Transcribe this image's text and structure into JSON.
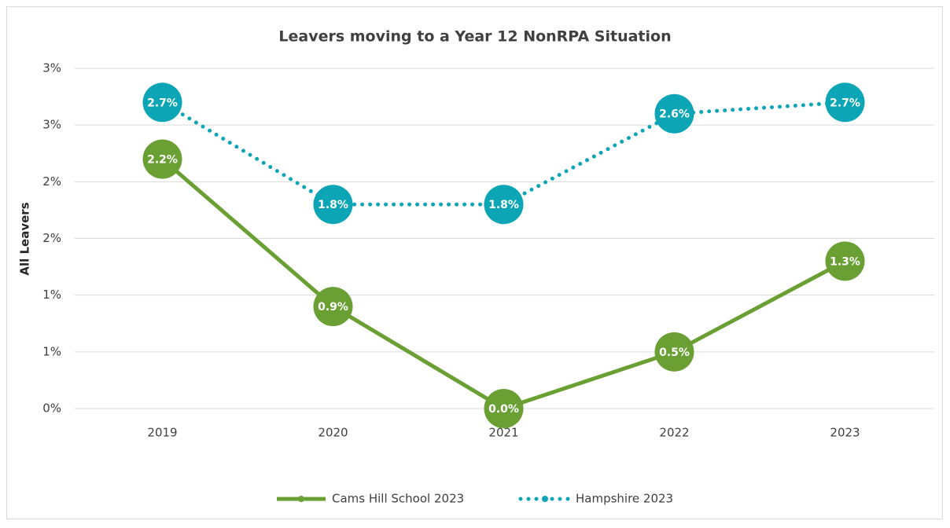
{
  "chart_data": {
    "type": "line",
    "title": "Leavers moving to a Year 12 NonRPA Situation",
    "y_label": "All Leavers",
    "categories": [
      "2019",
      "2020",
      "2021",
      "2022",
      "2023"
    ],
    "series": [
      {
        "name": "Cams Hill School 2023",
        "color": "#6aa033",
        "dash": "solid",
        "values": [
          2.2,
          0.9,
          0.0,
          0.5,
          1.3
        ],
        "value_labels": [
          "2.2%",
          "0.9%",
          "0.0%",
          "0.5%",
          "1.3%"
        ]
      },
      {
        "name": "Hampshire 2023",
        "color": "#0ba5b5",
        "dash": "dotted",
        "values": [
          2.7,
          1.8,
          1.8,
          2.6,
          2.7
        ],
        "value_labels": [
          "2.7%",
          "1.8%",
          "1.8%",
          "2.6%",
          "2.7%"
        ]
      }
    ],
    "ylim": [
      0,
      3
    ],
    "yticks": [
      {
        "value": 0,
        "label": "0%"
      },
      {
        "value": 0.5,
        "label": "1%"
      },
      {
        "value": 1,
        "label": "1%"
      },
      {
        "value": 1.5,
        "label": "2%"
      },
      {
        "value": 2,
        "label": "2%"
      },
      {
        "value": 2.5,
        "label": "3%"
      },
      {
        "value": 3,
        "label": "3%"
      }
    ],
    "grid": true,
    "legend": "bottom"
  }
}
